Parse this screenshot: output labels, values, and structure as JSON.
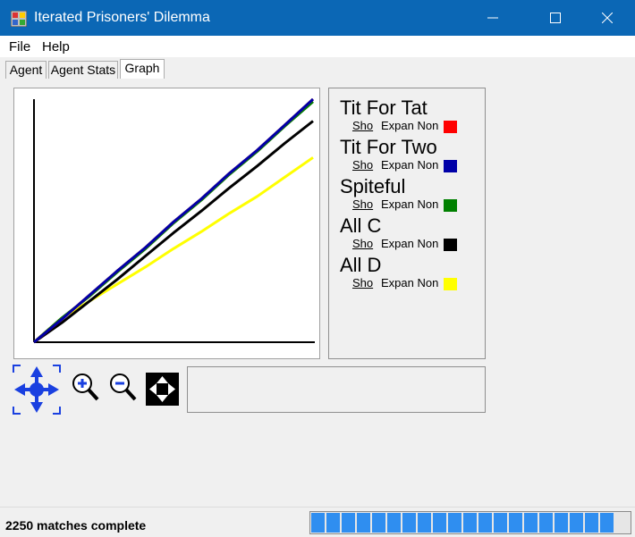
{
  "window": {
    "title": "Iterated Prisoners' Dilemma",
    "controls": [
      "minimize",
      "maximize",
      "close"
    ]
  },
  "menu": {
    "file": "File",
    "help": "Help"
  },
  "tabs": [
    {
      "label": "Agent",
      "active": false
    },
    {
      "label": "Agent Stats",
      "active": false
    },
    {
      "label": "Graph",
      "active": true
    }
  ],
  "legend": [
    {
      "name": "Tit For Tat",
      "show": "Sho",
      "expand": "Expan Non",
      "color": "#ff0000"
    },
    {
      "name": "Tit For Two",
      "show": "Sho",
      "expand": "Expan Non",
      "color": "#0000a8"
    },
    {
      "name": "Spiteful",
      "show": "Sho",
      "expand": "Expan Non",
      "color": "#008000"
    },
    {
      "name": "All C",
      "show": "Sho",
      "expand": "Expan Non",
      "color": "#000000"
    },
    {
      "name": "All D",
      "show": "Sho",
      "expand": "Expan Non",
      "color": "#ffff00"
    }
  ],
  "toolbar": [
    "pan-icon",
    "zoom-in-icon",
    "zoom-out-icon",
    "fit-icon"
  ],
  "status": {
    "text": "2250 matches complete",
    "progress": 1.0
  },
  "chart_data": {
    "type": "line",
    "title": "",
    "xlabel": "",
    "ylabel": "",
    "x": [
      0,
      0.1,
      0.2,
      0.3,
      0.4,
      0.5,
      0.6,
      0.7,
      0.8,
      0.9,
      1.0
    ],
    "series": [
      {
        "name": "Tit For Tat",
        "color": "#ff0000",
        "values": [
          0,
          0.095,
          0.195,
          0.295,
          0.39,
          0.495,
          0.59,
          0.695,
          0.79,
          0.895,
          1.0
        ]
      },
      {
        "name": "Tit For Two",
        "color": "#0000a8",
        "values": [
          0,
          0.095,
          0.195,
          0.295,
          0.39,
          0.495,
          0.59,
          0.695,
          0.79,
          0.895,
          1.0
        ]
      },
      {
        "name": "Spiteful",
        "color": "#008000",
        "values": [
          0,
          0.1,
          0.19,
          0.29,
          0.385,
          0.49,
          0.585,
          0.69,
          0.785,
          0.89,
          0.99
        ]
      },
      {
        "name": "All C",
        "color": "#000000",
        "values": [
          0,
          0.08,
          0.17,
          0.26,
          0.355,
          0.45,
          0.54,
          0.635,
          0.725,
          0.82,
          0.91
        ]
      },
      {
        "name": "All D",
        "color": "#ffff00",
        "values": [
          0,
          0.1,
          0.17,
          0.24,
          0.31,
          0.385,
          0.455,
          0.53,
          0.6,
          0.68,
          0.76
        ]
      }
    ]
  }
}
